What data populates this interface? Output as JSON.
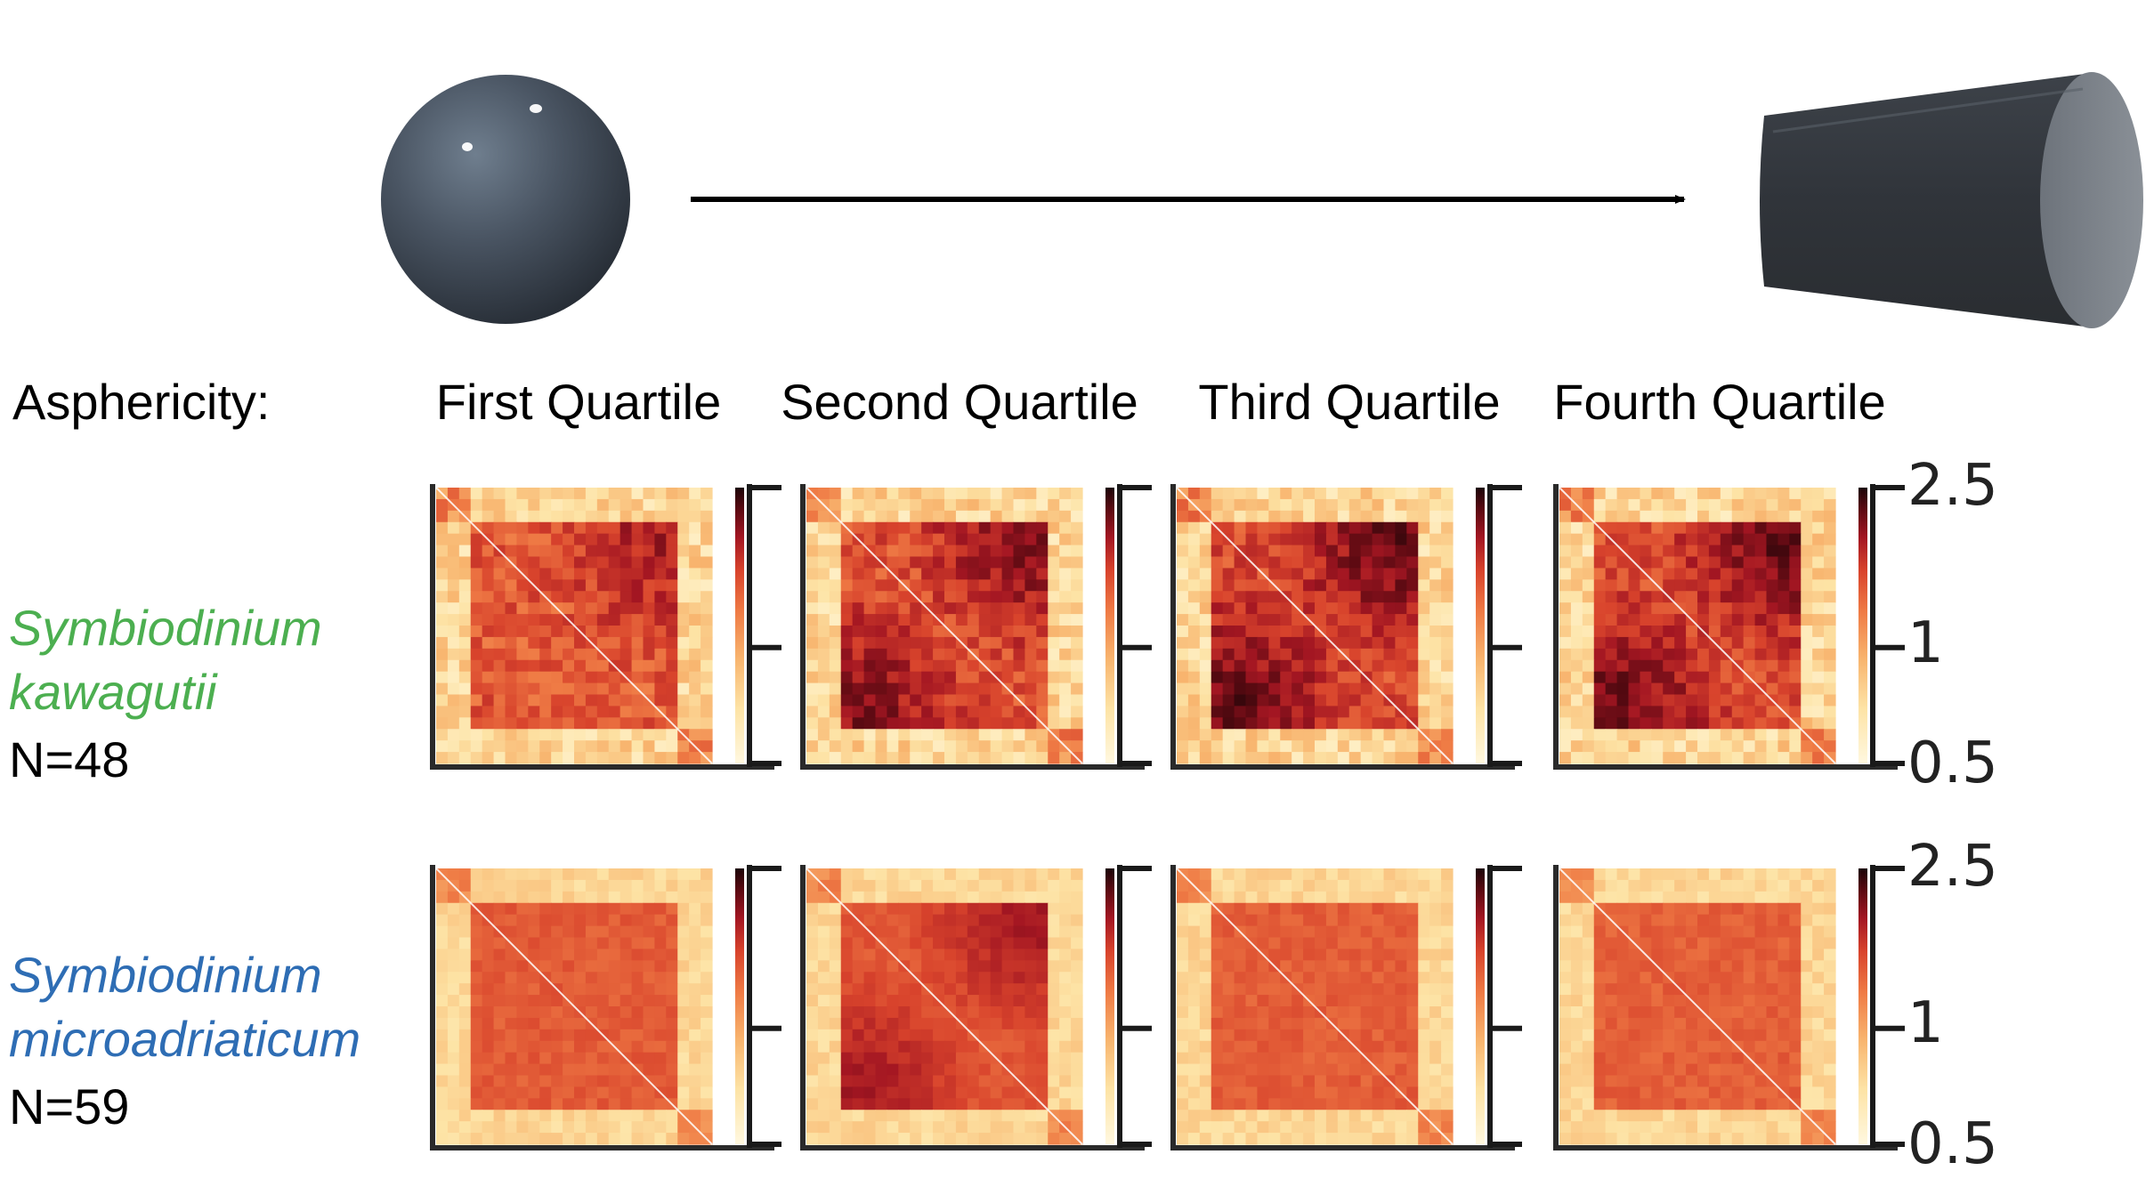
{
  "header": {
    "label": "Asphericity:",
    "quartiles": [
      "First Quartile",
      "Second Quartile",
      "Third Quartile",
      "Fourth Quartile"
    ]
  },
  "shapes": {
    "left": "sphere",
    "right": "cylinder",
    "connector": "right-arrow"
  },
  "rows": [
    {
      "species_line1": "Symbiodinium",
      "species_line2": "kawagutii",
      "n": "N=48",
      "color": "#4caf50",
      "maps": [
        {
          "dark_corner": "upper-right",
          "contrast": 0.55
        },
        {
          "dark_corner": "both",
          "contrast": 0.75
        },
        {
          "dark_corner": "both",
          "contrast": 0.9
        },
        {
          "dark_corner": "both",
          "contrast": 0.85
        }
      ]
    },
    {
      "species_line1": "Symbiodinium",
      "species_line2": "microadriaticum",
      "n": "N=59",
      "color": "#2e6db4",
      "maps": [
        {
          "dark_corner": "none",
          "contrast": 0.5
        },
        {
          "dark_corner": "both",
          "contrast": 0.6
        },
        {
          "dark_corner": "none",
          "contrast": 0.45
        },
        {
          "dark_corner": "none",
          "contrast": 0.4
        }
      ]
    }
  ],
  "colorbar": {
    "ticks": [
      "2.5",
      "1",
      "0.5"
    ],
    "colormap": [
      "#fff8e0",
      "#fde3a5",
      "#f8b46e",
      "#ef7b45",
      "#d8432c",
      "#a31622",
      "#5c0a12",
      "#1c0508"
    ]
  }
}
